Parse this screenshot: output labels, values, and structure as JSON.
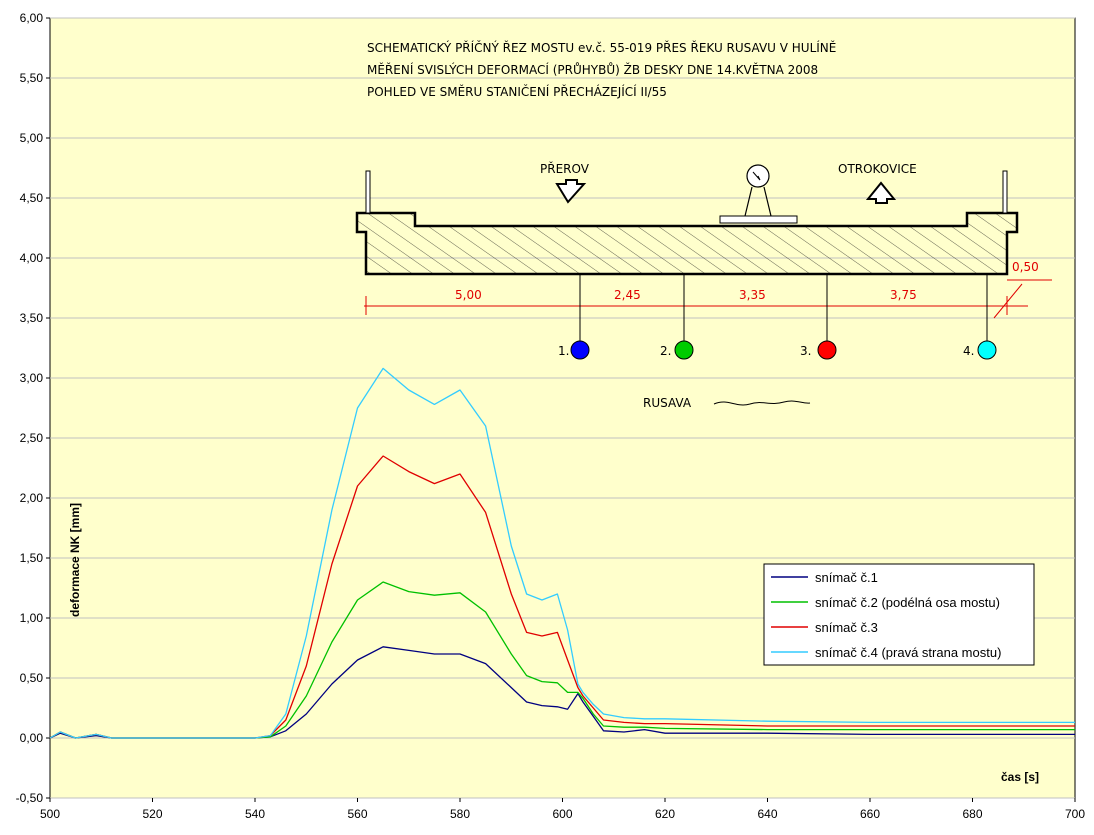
{
  "colors": {
    "plot_bg": "#FFFFCC",
    "grid": "#C0C0C0",
    "dimension": "#E00000"
  },
  "chart_data": {
    "type": "line",
    "xlabel": "čas [s]",
    "ylabel": "deformace NK [mm]",
    "xlim": [
      500,
      700
    ],
    "ylim": [
      -0.5,
      6.0
    ],
    "xticks": [
      500,
      520,
      540,
      560,
      580,
      600,
      620,
      640,
      660,
      680,
      700
    ],
    "yticks": [
      "-0,50",
      "0,00",
      "0,50",
      "1,00",
      "1,50",
      "2,00",
      "2,50",
      "3,00",
      "3,50",
      "4,00",
      "4,50",
      "5,00",
      "5,50",
      "6,00"
    ],
    "grid": "horizontal",
    "legend_position": "right",
    "series": [
      {
        "name": "snímač č.1",
        "color": "#000080",
        "x": [
          500,
          502,
          505,
          509,
          512,
          540,
          543,
          546,
          550,
          555,
          560,
          565,
          570,
          575,
          580,
          585,
          590,
          593,
          596,
          599,
          601,
          603,
          604,
          606,
          608,
          612,
          616,
          620,
          640,
          660,
          680,
          700
        ],
        "y": [
          0,
          0.04,
          0,
          0.02,
          0,
          0,
          0.01,
          0.06,
          0.2,
          0.45,
          0.65,
          0.76,
          0.73,
          0.7,
          0.7,
          0.62,
          0.42,
          0.3,
          0.27,
          0.26,
          0.24,
          0.37,
          0.3,
          0.18,
          0.06,
          0.05,
          0.07,
          0.04,
          0.04,
          0.03,
          0.03,
          0.03
        ]
      },
      {
        "name": "snímač č.2 (podélná osa mostu)",
        "color": "#00C000",
        "x": [
          500,
          502,
          505,
          509,
          512,
          540,
          543,
          546,
          550,
          555,
          560,
          565,
          570,
          575,
          580,
          585,
          590,
          593,
          596,
          599,
          601,
          603,
          604,
          606,
          608,
          612,
          616,
          620,
          640,
          660,
          680,
          700
        ],
        "y": [
          0,
          0.05,
          0,
          0.03,
          0,
          0,
          0.01,
          0.1,
          0.35,
          0.8,
          1.15,
          1.3,
          1.22,
          1.19,
          1.21,
          1.05,
          0.7,
          0.52,
          0.47,
          0.46,
          0.38,
          0.38,
          0.33,
          0.2,
          0.1,
          0.09,
          0.09,
          0.08,
          0.07,
          0.07,
          0.07,
          0.07
        ]
      },
      {
        "name": "snímač č.3",
        "color": "#E00000",
        "x": [
          500,
          502,
          505,
          509,
          512,
          540,
          543,
          546,
          550,
          555,
          560,
          565,
          570,
          575,
          580,
          585,
          590,
          593,
          596,
          599,
          601,
          603,
          604,
          606,
          608,
          612,
          616,
          620,
          640,
          660,
          680,
          700
        ],
        "y": [
          0,
          0.05,
          0,
          0.03,
          0,
          0,
          0.02,
          0.15,
          0.6,
          1.45,
          2.1,
          2.35,
          2.22,
          2.12,
          2.2,
          1.88,
          1.2,
          0.88,
          0.85,
          0.88,
          0.65,
          0.42,
          0.35,
          0.25,
          0.15,
          0.13,
          0.12,
          0.12,
          0.1,
          0.1,
          0.1,
          0.1
        ]
      },
      {
        "name": "snímač č.4 (pravá strana mostu)",
        "color": "#33CCFF",
        "x": [
          500,
          502,
          505,
          509,
          512,
          540,
          543,
          546,
          550,
          555,
          560,
          565,
          570,
          575,
          580,
          585,
          590,
          593,
          596,
          599,
          601,
          603,
          604,
          606,
          608,
          612,
          616,
          620,
          640,
          660,
          680,
          700
        ],
        "y": [
          0,
          0.05,
          0,
          0.03,
          0,
          0,
          0.02,
          0.2,
          0.85,
          1.9,
          2.75,
          3.08,
          2.9,
          2.78,
          2.9,
          2.6,
          1.6,
          1.2,
          1.15,
          1.2,
          0.9,
          0.45,
          0.38,
          0.28,
          0.2,
          0.17,
          0.16,
          0.16,
          0.14,
          0.13,
          0.13,
          0.13
        ]
      }
    ]
  },
  "sketch": {
    "title_lines": [
      "SCHEMATICKÝ PŘÍČNÝ ŘEZ MOSTU ev.č. 55-019 PŘES ŘEKU RUSAVU V HULÍNĚ",
      "MĚŘENÍ SVISLÝCH DEFORMACÍ (PRŮHYBŮ) ŽB DESKY DNE 14.KVĚTNA 2008",
      "POHLED VE SMĚRU STANIČENÍ PŘECHÁZEJÍCÍ II/55"
    ],
    "left_direction": "PŘEROV",
    "right_direction": "OTROKOVICE",
    "dimensions": [
      "5,00",
      "2,45",
      "3,35",
      "3,75"
    ],
    "offset_dimension": "0,50",
    "sensors": [
      {
        "label": "1.",
        "color": "#0000FF"
      },
      {
        "label": "2.",
        "color": "#00CC00"
      },
      {
        "label": "3.",
        "color": "#FF0000"
      },
      {
        "label": "4.",
        "color": "#00FFFF"
      }
    ],
    "river_label": "RUSAVA"
  }
}
